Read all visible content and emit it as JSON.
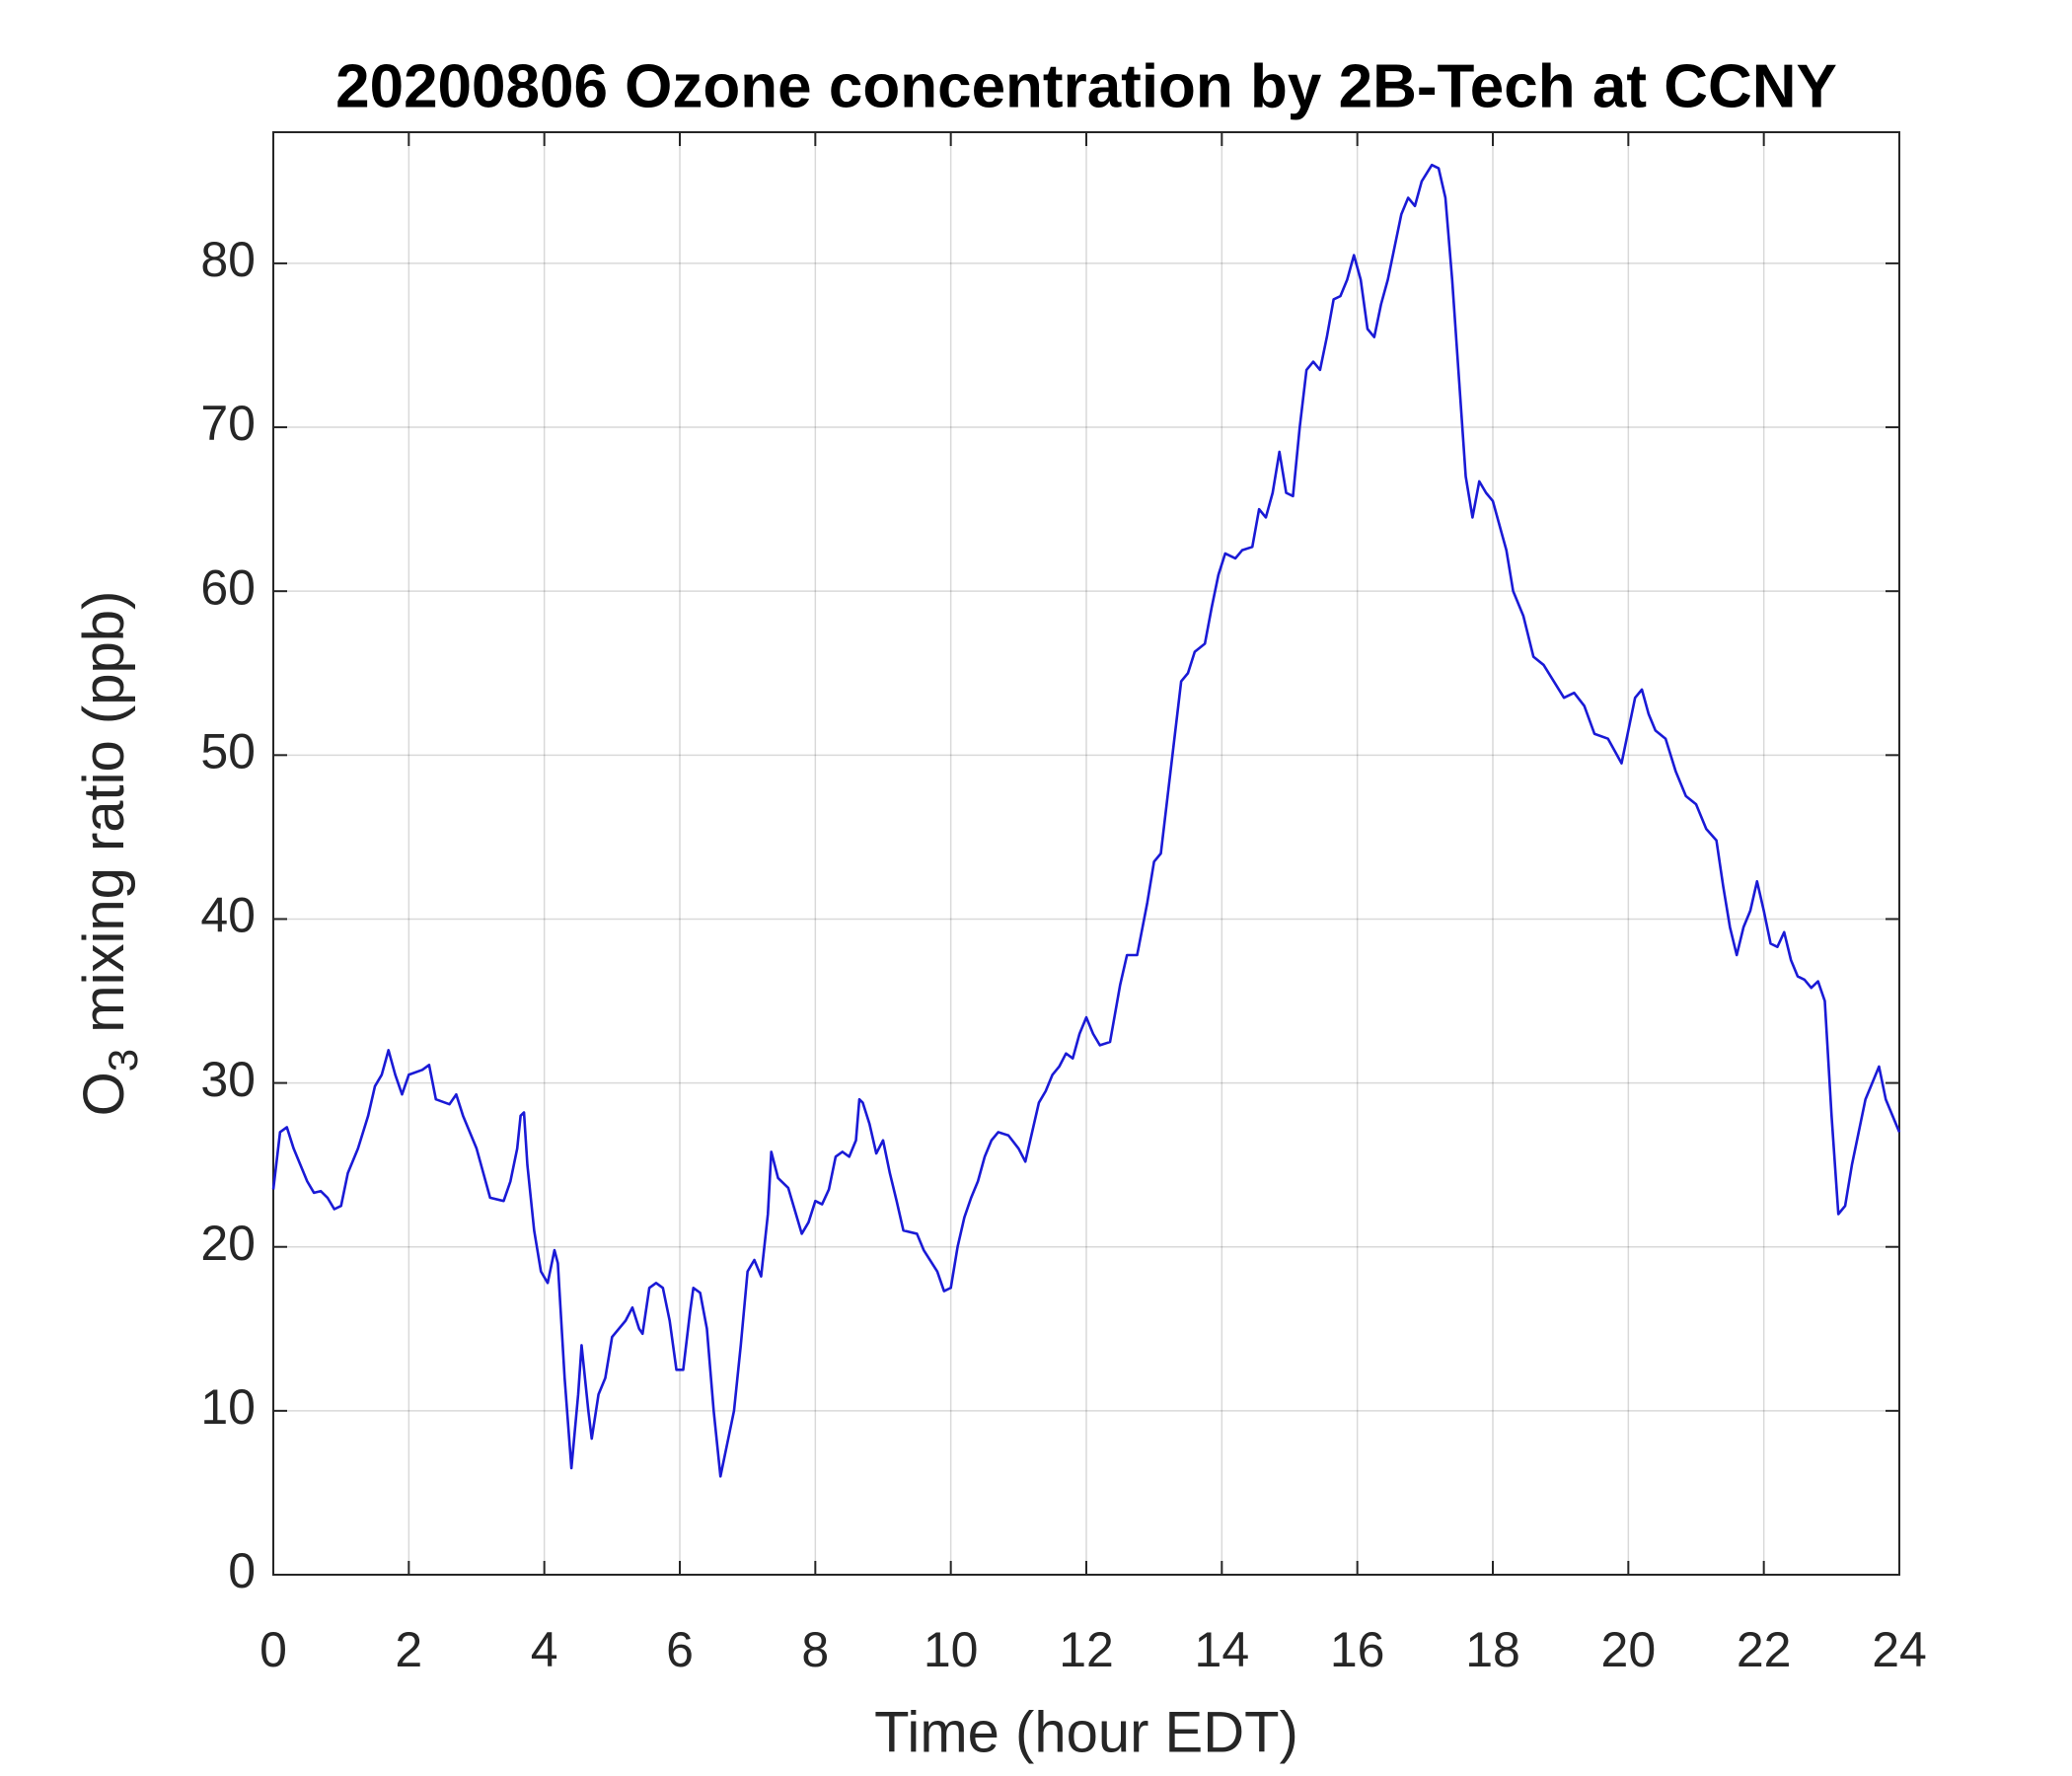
{
  "chart_data": {
    "type": "line",
    "title": "20200806 Ozone concentration by 2B-Tech at CCNY",
    "xlabel": "Time (hour EDT)",
    "ylabel": [
      "O",
      "3",
      " mixing ratio (ppb)"
    ],
    "x": [
      0,
      0.1,
      0.2,
      0.3,
      0.4,
      0.5,
      0.6,
      0.7,
      0.8,
      0.9,
      1.0,
      1.1,
      1.25,
      1.4,
      1.5,
      1.6,
      1.7,
      1.8,
      1.9,
      2.0,
      2.2,
      2.3,
      2.4,
      2.6,
      2.7,
      2.8,
      3.0,
      3.1,
      3.2,
      3.4,
      3.5,
      3.6,
      3.65,
      3.7,
      3.75,
      3.85,
      3.95,
      4.05,
      4.15,
      4.2,
      4.3,
      4.4,
      4.5,
      4.55,
      4.65,
      4.7,
      4.8,
      4.9,
      5.0,
      5.2,
      5.3,
      5.4,
      5.45,
      5.55,
      5.65,
      5.75,
      5.85,
      5.95,
      6.05,
      6.15,
      6.2,
      6.3,
      6.4,
      6.5,
      6.6,
      6.7,
      6.8,
      6.9,
      7.0,
      7.1,
      7.2,
      7.3,
      7.35,
      7.45,
      7.6,
      7.7,
      7.8,
      7.9,
      8.0,
      8.1,
      8.2,
      8.3,
      8.4,
      8.5,
      8.6,
      8.65,
      8.7,
      8.8,
      8.9,
      9.0,
      9.1,
      9.2,
      9.3,
      9.5,
      9.6,
      9.8,
      9.9,
      10.0,
      10.1,
      10.2,
      10.3,
      10.4,
      10.5,
      10.6,
      10.7,
      10.85,
      11.0,
      11.1,
      11.2,
      11.3,
      11.4,
      11.5,
      11.6,
      11.7,
      11.8,
      11.9,
      12.0,
      12.1,
      12.2,
      12.35,
      12.5,
      12.6,
      12.75,
      12.9,
      13.0,
      13.1,
      13.2,
      13.3,
      13.4,
      13.5,
      13.6,
      13.75,
      13.85,
      13.95,
      14.05,
      14.2,
      14.3,
      14.45,
      14.55,
      14.65,
      14.75,
      14.85,
      14.95,
      15.05,
      15.15,
      15.25,
      15.35,
      15.45,
      15.55,
      15.65,
      15.75,
      15.85,
      15.95,
      16.05,
      16.15,
      16.25,
      16.35,
      16.45,
      16.55,
      16.65,
      16.75,
      16.85,
      16.95,
      17.1,
      17.2,
      17.3,
      17.4,
      17.5,
      17.6,
      17.7,
      17.8,
      17.9,
      18.0,
      18.1,
      18.2,
      18.3,
      18.45,
      18.6,
      18.75,
      18.9,
      19.05,
      19.2,
      19.35,
      19.5,
      19.7,
      19.9,
      20.0,
      20.1,
      20.2,
      20.3,
      20.4,
      20.55,
      20.7,
      20.85,
      21.0,
      21.15,
      21.3,
      21.4,
      21.5,
      21.6,
      21.7,
      21.8,
      21.9,
      22.0,
      22.1,
      22.2,
      22.3,
      22.4,
      22.5,
      22.6,
      22.7,
      22.8,
      22.9,
      23.0,
      23.1,
      23.2,
      23.3,
      23.4,
      23.5,
      23.6,
      23.7,
      23.8,
      23.9,
      24.0
    ],
    "series": [
      {
        "color": "#1a1ad6",
        "values": [
          23.5,
          27,
          27.3,
          26,
          25,
          24,
          23.3,
          23.4,
          23,
          22.3,
          22.5,
          24.5,
          26,
          28,
          29.8,
          30.5,
          32,
          30.5,
          29.3,
          30.5,
          30.8,
          31.1,
          29,
          28.7,
          29.3,
          28,
          26,
          24.5,
          23,
          22.8,
          24,
          26,
          28,
          28.2,
          25,
          21,
          18.5,
          17.8,
          19.8,
          19,
          12,
          6.5,
          11,
          14,
          10,
          8.3,
          11,
          12,
          14.5,
          15.5,
          16.3,
          15,
          14.7,
          17.5,
          17.8,
          17.5,
          15.5,
          12.5,
          12.5,
          16,
          17.5,
          17.2,
          15,
          10,
          6,
          8,
          10,
          14,
          18.5,
          19.2,
          18.2,
          22,
          25.8,
          24.2,
          23.6,
          22.2,
          20.8,
          21.5,
          22.8,
          22.6,
          23.5,
          25.5,
          25.8,
          25.5,
          26.5,
          29,
          28.8,
          27.5,
          25.7,
          26.5,
          24.5,
          22.8,
          21,
          20.8,
          19.8,
          18.5,
          17.3,
          17.5,
          20,
          21.8,
          23,
          24,
          25.5,
          26.5,
          27,
          26.8,
          26,
          25.2,
          27,
          28.8,
          29.5,
          30.5,
          31,
          31.8,
          31.5,
          33,
          34,
          33,
          32.3,
          32.5,
          36,
          37.8,
          37.8,
          41,
          43.5,
          44,
          47.5,
          51,
          54.5,
          55,
          56.3,
          56.8,
          59,
          61,
          62.3,
          62,
          62.5,
          62.7,
          65,
          64.5,
          66,
          68.5,
          66,
          65.8,
          70,
          73.5,
          74,
          73.5,
          75.5,
          77.8,
          78,
          79,
          80.5,
          79,
          76,
          75.5,
          77.5,
          79,
          81,
          83,
          84,
          83.5,
          85,
          86,
          85.8,
          84,
          79,
          73,
          67,
          64.5,
          66.7,
          66,
          65.5,
          64,
          62.5,
          60,
          58.5,
          56,
          55.5,
          54.5,
          53.5,
          53.8,
          53,
          51.3,
          51,
          49.5,
          51.5,
          53.5,
          54,
          52.5,
          51.5,
          51,
          49,
          47.5,
          47,
          45.5,
          44.8,
          42,
          39.5,
          37.8,
          39.5,
          40.5,
          42.3,
          40.5,
          38.5,
          38.3,
          39.2,
          37.5,
          36.5,
          36.3,
          35.8,
          36.2,
          35,
          28,
          22,
          22.5,
          25,
          27,
          29,
          30,
          31,
          29,
          28,
          27
        ]
      }
    ],
    "xlim": [
      0,
      24
    ],
    "xticks": [
      0,
      2,
      4,
      6,
      8,
      10,
      12,
      14,
      16,
      18,
      20,
      22,
      24
    ],
    "ylim": [
      0,
      88
    ],
    "yticks": [
      0,
      10,
      20,
      30,
      40,
      50,
      60,
      70,
      80
    ],
    "grid": true
  }
}
